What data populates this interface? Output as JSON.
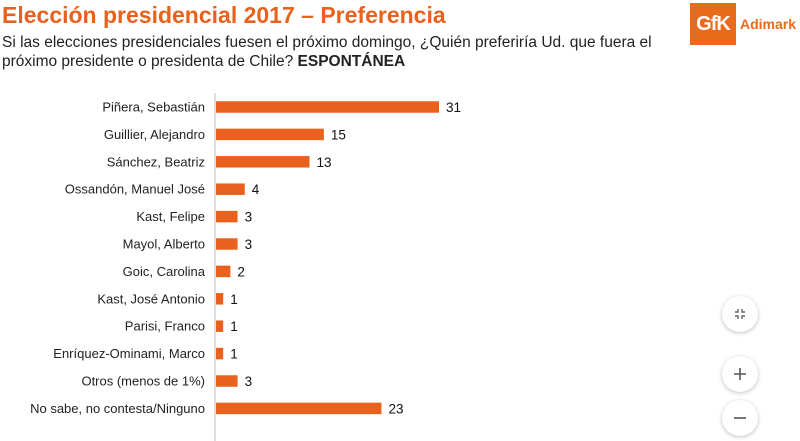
{
  "header": {
    "title": "Elección presidencial 2017 – Preferencia",
    "subtitle": "Si las elecciones presidenciales fuesen el próximo domingo, ¿Quién preferiría Ud. que fuera el próximo presidente o presidenta de Chile?",
    "subtitle_emphasis": "ESPONTÁNEA"
  },
  "logo": {
    "mark": "GfK",
    "name": "Adimark"
  },
  "controls": {
    "collapse_icon": "collapse-icon",
    "zoom_in_icon": "plus-icon",
    "zoom_out_icon": "minus-icon"
  },
  "chart_data": {
    "type": "bar",
    "orientation": "horizontal",
    "bar_color": "#e8621e",
    "categories": [
      "Piñera, Sebastián",
      "Guillier, Alejandro",
      "Sánchez, Beatriz",
      "Ossandón, Manuel José",
      "Kast, Felipe",
      "Mayol, Alberto",
      "Goic, Carolina",
      "Kast, José Antonio",
      "Parisi, Franco",
      "Enríquez-Ominami, Marco",
      "Otros (menos de 1%)",
      "No sabe, no contesta/Ninguno"
    ],
    "values": [
      31,
      15,
      13,
      4,
      3,
      3,
      2,
      1,
      1,
      1,
      3,
      23
    ],
    "data_labels": true,
    "grid": false,
    "legend": "none"
  }
}
